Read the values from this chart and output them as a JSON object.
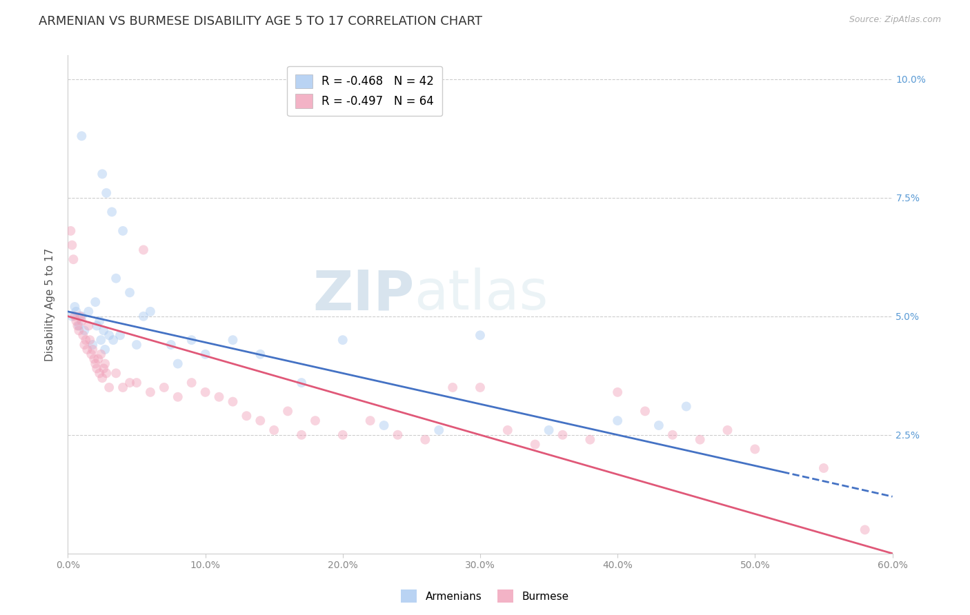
{
  "title": "ARMENIAN VS BURMESE DISABILITY AGE 5 TO 17 CORRELATION CHART",
  "source": "Source: ZipAtlas.com",
  "ylabel": "Disability Age 5 to 17",
  "x_tick_labels": [
    "0.0%",
    "10.0%",
    "20.0%",
    "30.0%",
    "40.0%",
    "50.0%",
    "60.0%"
  ],
  "x_tick_values": [
    0.0,
    10.0,
    20.0,
    30.0,
    40.0,
    50.0,
    60.0
  ],
  "y_tick_labels": [
    "2.5%",
    "5.0%",
    "7.5%",
    "10.0%"
  ],
  "y_tick_values": [
    2.5,
    5.0,
    7.5,
    10.0
  ],
  "xlim": [
    0.0,
    60.0
  ],
  "ylim": [
    0.0,
    10.5
  ],
  "armenian_color": "#a8c8f0",
  "burmese_color": "#f0a0b8",
  "armenian_line_color": "#4472c4",
  "burmese_line_color": "#e05878",
  "legend_armenian_label": "R = -0.468   N = 42",
  "legend_burmese_label": "R = -0.497   N = 64",
  "bottom_legend_armenian": "Armenians",
  "bottom_legend_burmese": "Burmese",
  "marker_size": 100,
  "marker_alpha": 0.45,
  "armenian_x": [
    1.0,
    2.5,
    2.8,
    3.2,
    4.0,
    0.5,
    1.0,
    1.5,
    2.0,
    2.3,
    2.6,
    3.0,
    3.5,
    4.5,
    5.5,
    6.0,
    7.5,
    9.0,
    10.0,
    12.0,
    14.0,
    17.0,
    20.0,
    23.0,
    27.0,
    30.0,
    35.0,
    40.0,
    43.0,
    45.0,
    0.3,
    0.6,
    0.8,
    1.2,
    1.8,
    2.1,
    2.4,
    2.7,
    3.3,
    3.8,
    5.0,
    8.0
  ],
  "armenian_y": [
    8.8,
    8.0,
    7.6,
    7.2,
    6.8,
    5.2,
    5.0,
    5.1,
    5.3,
    4.9,
    4.7,
    4.6,
    5.8,
    5.5,
    5.0,
    5.1,
    4.4,
    4.5,
    4.2,
    4.5,
    4.2,
    3.6,
    4.5,
    2.7,
    2.6,
    4.6,
    2.6,
    2.8,
    2.7,
    3.1,
    5.0,
    5.1,
    4.8,
    4.7,
    4.4,
    4.8,
    4.5,
    4.3,
    4.5,
    4.6,
    4.4,
    4.0
  ],
  "burmese_x": [
    0.2,
    0.3,
    0.4,
    0.5,
    0.6,
    0.7,
    0.8,
    0.9,
    1.0,
    1.1,
    1.2,
    1.3,
    1.4,
    1.5,
    1.6,
    1.7,
    1.8,
    1.9,
    2.0,
    2.1,
    2.2,
    2.3,
    2.4,
    2.5,
    2.6,
    2.7,
    2.8,
    3.0,
    3.5,
    4.0,
    4.5,
    5.0,
    5.5,
    6.0,
    7.0,
    8.0,
    9.0,
    10.0,
    11.0,
    12.0,
    13.0,
    14.0,
    15.0,
    16.0,
    17.0,
    18.0,
    20.0,
    22.0,
    24.0,
    26.0,
    28.0,
    30.0,
    32.0,
    34.0,
    36.0,
    38.0,
    40.0,
    42.0,
    44.0,
    46.0,
    48.0,
    50.0,
    55.0,
    58.0
  ],
  "burmese_y": [
    6.8,
    6.5,
    6.2,
    5.0,
    4.9,
    4.8,
    4.7,
    5.0,
    4.9,
    4.6,
    4.4,
    4.5,
    4.3,
    4.8,
    4.5,
    4.2,
    4.3,
    4.1,
    4.0,
    3.9,
    4.1,
    3.8,
    4.2,
    3.7,
    3.9,
    4.0,
    3.8,
    3.5,
    3.8,
    3.5,
    3.6,
    3.6,
    6.4,
    3.4,
    3.5,
    3.3,
    3.6,
    3.4,
    3.3,
    3.2,
    2.9,
    2.8,
    2.6,
    3.0,
    2.5,
    2.8,
    2.5,
    2.8,
    2.5,
    2.4,
    3.5,
    3.5,
    2.6,
    2.3,
    2.5,
    2.4,
    3.4,
    3.0,
    2.5,
    2.4,
    2.6,
    2.2,
    1.8,
    0.5
  ],
  "arm_line_x0": 0.0,
  "arm_line_y0": 5.1,
  "arm_line_x1": 60.0,
  "arm_line_y1": 1.2,
  "bur_line_x0": 0.0,
  "bur_line_y0": 5.0,
  "bur_line_x1": 60.0,
  "bur_line_y1": 0.0,
  "arm_dash_start_x": 52.0,
  "grid_color": "#cccccc",
  "bg_color": "#ffffff",
  "title_fontsize": 13,
  "axis_label_fontsize": 11,
  "tick_fontsize": 10,
  "source_fontsize": 9
}
